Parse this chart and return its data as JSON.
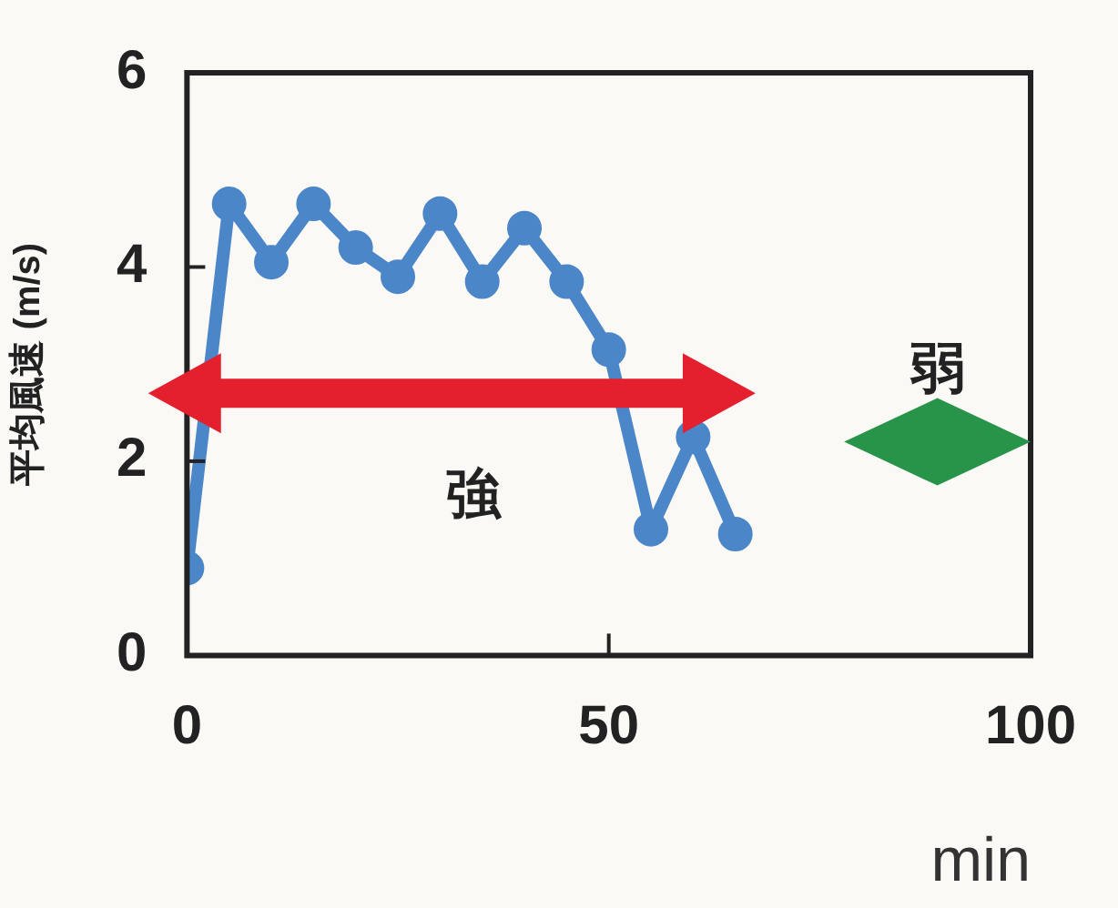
{
  "chart_data": {
    "type": "line",
    "x": [
      0,
      5,
      10,
      15,
      20,
      25,
      30,
      35,
      40,
      45,
      50,
      55,
      60,
      65
    ],
    "series": [
      {
        "color": "#4a86c8",
        "values": [
          0.9,
          4.65,
          4.05,
          4.65,
          4.2,
          3.9,
          4.55,
          3.85,
          4.4,
          3.85,
          3.15,
          1.3,
          2.25,
          1.25
        ]
      }
    ],
    "xlim": [
      0,
      100
    ],
    "xticks": [
      0,
      50,
      100
    ],
    "ylim": [
      0,
      6
    ],
    "yticks": [
      0,
      2,
      4,
      6
    ],
    "xlabel": "min",
    "ylabel": "平均風速 (m/s)",
    "annotations": [
      "強",
      "弱"
    ],
    "grid": false,
    "legend": false,
    "marker": "circle",
    "line_style": "solid"
  }
}
